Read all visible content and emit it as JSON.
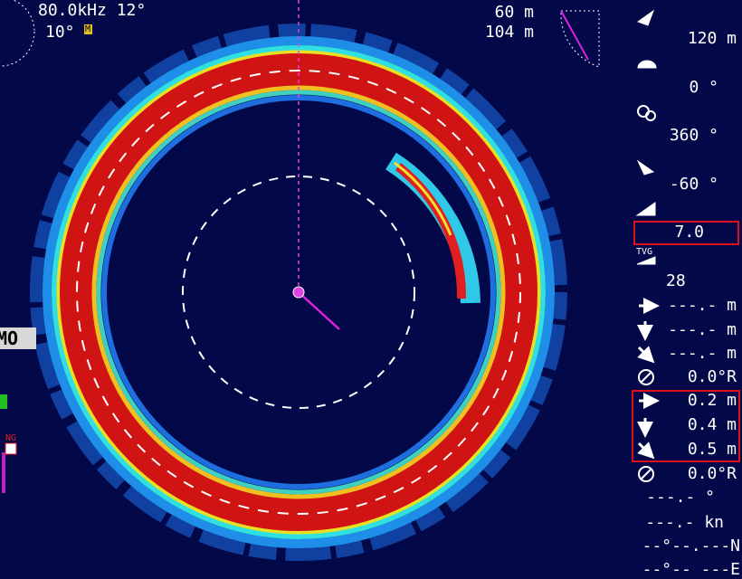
{
  "header": {
    "frequency": "80.0kHz 12°",
    "tilt": "10°",
    "mode": "M",
    "range_horizontal": "60 m",
    "range_slant": "104 m"
  },
  "left": {
    "mode_label": "MO",
    "ng_label": "NG"
  },
  "panel": {
    "range": "120 m",
    "bearing": "0 °",
    "sector": "360 °",
    "tilt": "-60 °",
    "gain": "7.0",
    "tvg_label": "TVG",
    "tvg": "28",
    "target_horizontal": "---.- m",
    "target_depth": "---.- m",
    "target_slant": "---.- m",
    "target_bearing": "0.0°R",
    "marker_horizontal": "0.2 m",
    "marker_depth": "0.4 m",
    "marker_slant": "0.5 m",
    "marker_bearing": "0.0°R",
    "heading": "---.- °",
    "speed": "---.- kn",
    "latitude": "--°--.---N",
    "longitude": "--°-- ---E"
  }
}
